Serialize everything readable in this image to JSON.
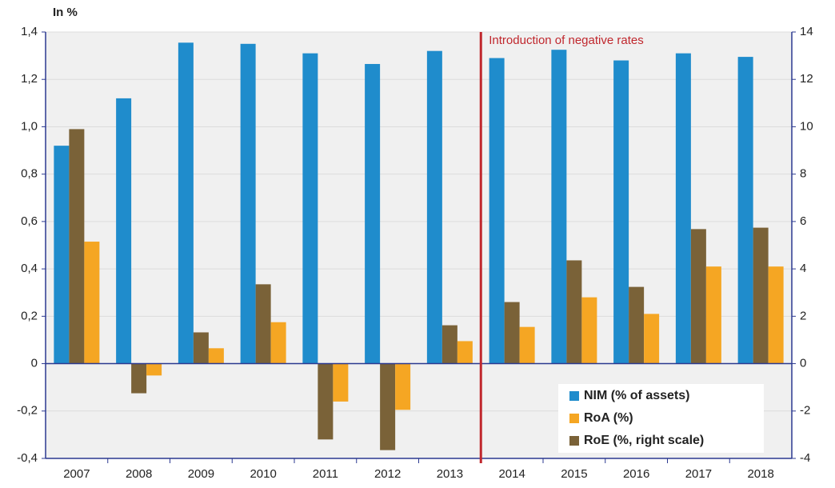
{
  "chart_data": {
    "type": "bar",
    "y_label": "In %",
    "categories": [
      "2007",
      "2008",
      "2009",
      "2010",
      "2011",
      "2012",
      "2013",
      "2014",
      "2015",
      "2016",
      "2017",
      "2018"
    ],
    "series": [
      {
        "name": "NIM (% of assets)",
        "color": "#1f8ccc",
        "values": [
          0.92,
          1.12,
          1.355,
          1.35,
          1.31,
          1.265,
          1.32,
          1.29,
          1.325,
          1.28,
          1.31,
          1.295
        ]
      },
      {
        "name": "RoE (%, right scale)",
        "color": "#7a6238",
        "axis": "y2",
        "values": [
          9.9,
          -1.25,
          1.32,
          3.35,
          -3.2,
          -3.65,
          1.62,
          2.6,
          4.36,
          3.24,
          5.68,
          5.74
        ]
      },
      {
        "name": "RoA (%)",
        "color": "#f5a623",
        "values": [
          0.515,
          -0.05,
          0.065,
          0.175,
          -0.16,
          -0.195,
          0.095,
          0.155,
          0.28,
          0.21,
          0.41,
          0.41
        ]
      }
    ],
    "legend_order": [
      0,
      2,
      1
    ],
    "ylim": [
      -0.4,
      1.4
    ],
    "yticks": [
      {
        "value": -0.4,
        "label": "-0,4"
      },
      {
        "value": -0.2,
        "label": "-0,2"
      },
      0,
      {
        "value": 0.2,
        "label": "0,2"
      },
      {
        "value": 0.4,
        "label": "0,4"
      },
      {
        "value": 0.6,
        "label": "0,6"
      },
      {
        "value": 0.8,
        "label": "0,8"
      },
      {
        "value": 1.0,
        "label": "1,0"
      },
      {
        "value": 1.2,
        "label": "1,2"
      },
      {
        "value": 1.4,
        "label": "1,4"
      }
    ],
    "y2lim": [
      -4,
      14
    ],
    "y2ticks": [
      -4,
      -2,
      0,
      2,
      4,
      6,
      8,
      10,
      12,
      14
    ],
    "grid": true,
    "legend": "lower right",
    "annotation": {
      "text": "Introduction of negative rates",
      "after": "2013",
      "color": "#c0272d"
    }
  }
}
